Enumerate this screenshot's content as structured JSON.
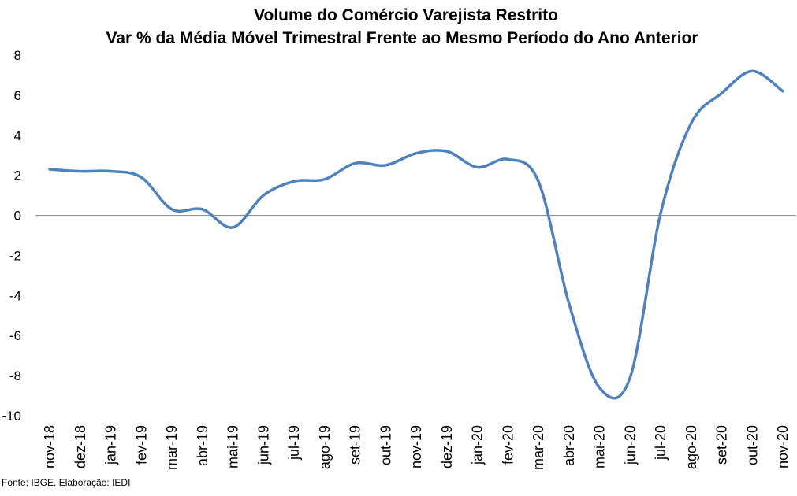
{
  "chart_data": {
    "type": "line",
    "title": "Volume do Comércio Varejista Restrito",
    "subtitle": "Var % da Média Móvel Trimestral Frente ao Mesmo Período do Ano Anterior",
    "categories": [
      "nov-18",
      "dez-18",
      "jan-19",
      "fev-19",
      "mar-19",
      "abr-19",
      "mai-19",
      "jun-19",
      "jul-19",
      "ago-19",
      "set-19",
      "out-19",
      "nov-19",
      "dez-19",
      "jan-20",
      "fev-20",
      "mar-20",
      "abr-20",
      "mai-20",
      "jun-20",
      "jul-20",
      "ago-20",
      "set-20",
      "out-20",
      "nov-20"
    ],
    "values": [
      2.3,
      2.2,
      2.2,
      1.9,
      0.3,
      0.3,
      -0.6,
      1.0,
      1.7,
      1.8,
      2.6,
      2.5,
      3.1,
      3.2,
      2.4,
      2.8,
      1.7,
      -4.4,
      -8.6,
      -8.1,
      0.1,
      4.6,
      6.1,
      7.2,
      6.2
    ],
    "ylim": [
      -10,
      8
    ],
    "yticks": [
      8,
      6,
      4,
      2,
      0,
      -2,
      -4,
      -6,
      -8,
      -10
    ],
    "grid": false,
    "legend": "none",
    "smooth": true,
    "line_color": "#4F81BD",
    "axis_line_color": "#868686"
  },
  "source_note": "Fonte: IBGE. Elaboração: IEDI"
}
